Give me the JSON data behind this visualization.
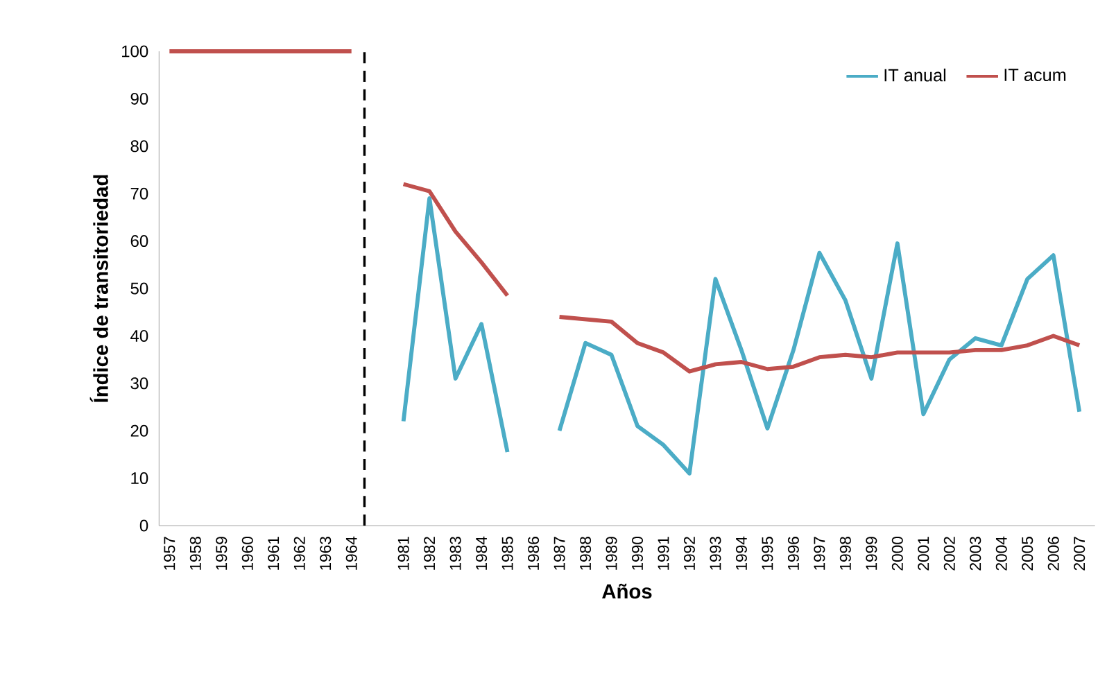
{
  "chart_data": {
    "type": "line",
    "xlabel": "Años",
    "ylabel": "Índice de transitoriedad",
    "categories": [
      "1957",
      "1958",
      "1959",
      "1960",
      "1961",
      "1962",
      "1963",
      "1964",
      null,
      "1981",
      "1982",
      "1983",
      "1984",
      "1985",
      "1986",
      "1987",
      "1988",
      "1989",
      "1990",
      "1991",
      "1992",
      "1993",
      "1994",
      "1995",
      "1996",
      "1997",
      "1998",
      "1999",
      "2000",
      "2001",
      "2002",
      "2003",
      "2004",
      "2005",
      "2006",
      "2007"
    ],
    "series": [
      {
        "name": "IT anual",
        "color": "#4bacc6",
        "values": [
          null,
          null,
          null,
          null,
          null,
          null,
          null,
          null,
          null,
          22,
          69,
          31,
          42.5,
          15.5,
          null,
          20,
          38.5,
          36,
          21,
          17,
          11,
          52,
          37,
          20.5,
          37,
          57.5,
          47.5,
          31,
          59.5,
          23.5,
          35,
          39.5,
          38,
          52,
          57,
          24
        ]
      },
      {
        "name": "IT acum",
        "color": "#c0504d",
        "values": [
          100,
          100,
          100,
          100,
          100,
          100,
          100,
          100,
          null,
          72,
          70.5,
          62,
          55.5,
          48.5,
          null,
          44,
          43.5,
          43,
          38.5,
          36.5,
          32.5,
          34,
          34.5,
          33,
          33.5,
          35.5,
          36,
          35.5,
          36.5,
          36.5,
          36.5,
          37,
          37,
          38,
          40,
          38
        ]
      }
    ],
    "ylim": [
      0,
      100
    ],
    "yticks": [
      0,
      10,
      20,
      30,
      40,
      50,
      60,
      70,
      80,
      90,
      100
    ],
    "grid": false,
    "legend": "top right",
    "marker": "none",
    "line_style": "solid"
  }
}
